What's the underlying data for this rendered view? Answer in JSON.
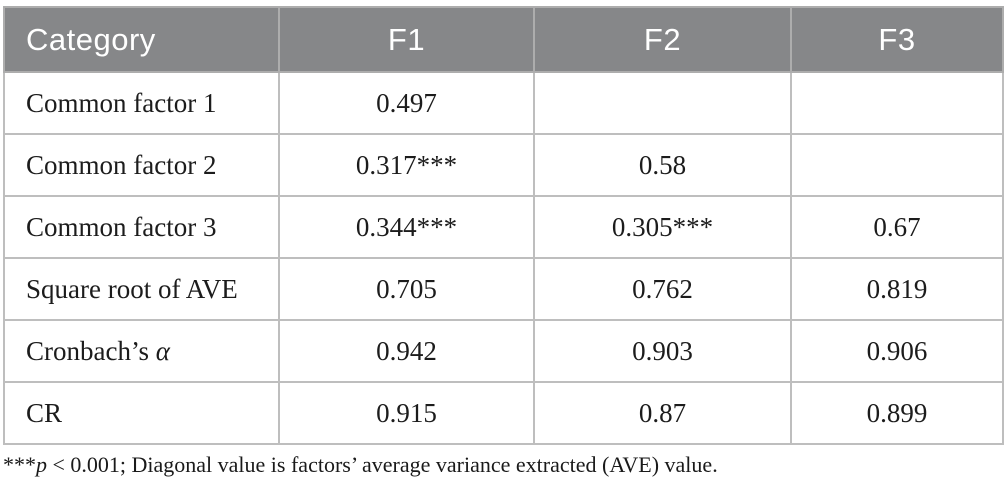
{
  "table": {
    "header": {
      "columns": [
        "Category",
        "F1",
        "F2",
        "F3"
      ]
    },
    "rows": [
      {
        "category": "Common factor 1",
        "f1": "0.497",
        "f2": "",
        "f3": ""
      },
      {
        "category": "Common factor 2",
        "f1": "0.317***",
        "f2": "0.58",
        "f3": ""
      },
      {
        "category": "Common factor 3",
        "f1": "0.344***",
        "f2": "0.305***",
        "f3": "0.67"
      },
      {
        "category": "Square root of AVE",
        "f1": "0.705",
        "f2": "0.762",
        "f3": "0.819"
      },
      {
        "category": "Cronbach’s",
        "category_symbol": "α",
        "f1": "0.942",
        "f2": "0.903",
        "f3": "0.906"
      },
      {
        "category": "CR",
        "f1": "0.915",
        "f2": "0.87",
        "f3": "0.899"
      }
    ]
  },
  "footnote": {
    "stars": "***",
    "p_symbol": "p",
    "rest": " < 0.001; Diagonal value is factors’ average variance extracted (AVE) value."
  },
  "colors": {
    "header_bg": "#868789",
    "header_text": "#ffffff",
    "border": "#bebebe",
    "body_text": "#1c1c1c"
  }
}
